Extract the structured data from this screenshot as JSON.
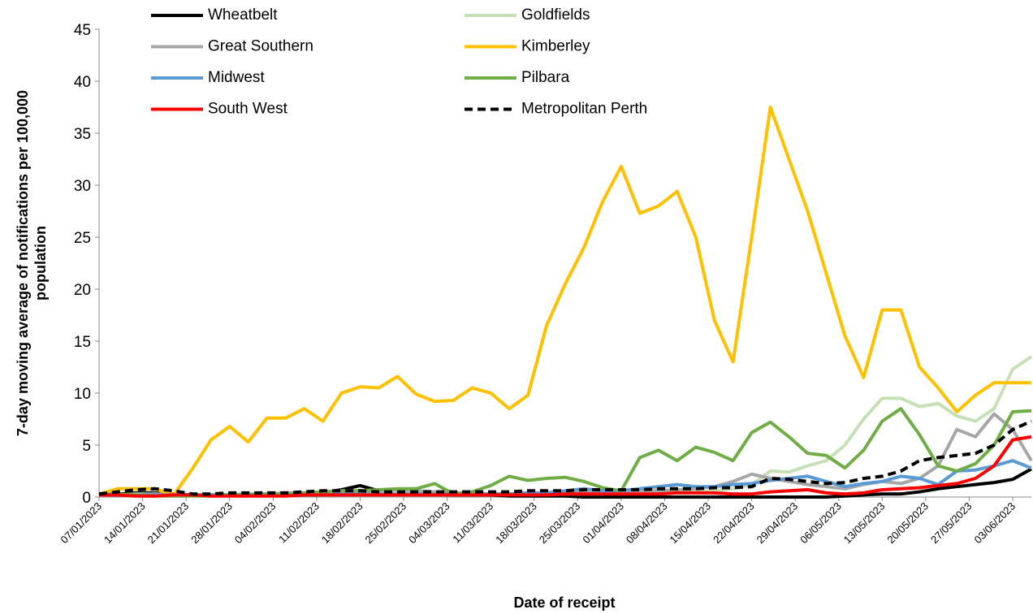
{
  "chart_data": {
    "type": "line",
    "xlabel": "Date of receipt",
    "ylabel": [
      "7-day moving average of notifications per 100,000",
      "population"
    ],
    "x": [
      "07/01/2023",
      "10/01/2023",
      "13/01/2023",
      "16/01/2023",
      "19/01/2023",
      "22/01/2023",
      "25/01/2023",
      "28/01/2023",
      "31/01/2023",
      "03/02/2023",
      "06/02/2023",
      "09/02/2023",
      "12/02/2023",
      "15/02/2023",
      "18/02/2023",
      "21/02/2023",
      "24/02/2023",
      "27/02/2023",
      "02/03/2023",
      "05/03/2023",
      "08/03/2023",
      "11/03/2023",
      "14/03/2023",
      "17/03/2023",
      "20/03/2023",
      "23/03/2023",
      "26/03/2023",
      "29/03/2023",
      "01/04/2023",
      "04/04/2023",
      "07/04/2023",
      "10/04/2023",
      "13/04/2023",
      "16/04/2023",
      "19/04/2023",
      "22/04/2023",
      "25/04/2023",
      "28/04/2023",
      "01/05/2023",
      "04/05/2023",
      "07/05/2023",
      "10/05/2023",
      "13/05/2023",
      "16/05/2023",
      "19/05/2023",
      "22/05/2023",
      "25/05/2023",
      "28/05/2023",
      "31/05/2023",
      "03/06/2023",
      "06/06/2023"
    ],
    "xlim": [
      "07/01/2023",
      "06/06/2023"
    ],
    "xticks": [
      "07/01/2023",
      "14/01/2023",
      "21/01/2023",
      "28/01/2023",
      "04/02/2023",
      "11/02/2023",
      "18/02/2023",
      "25/02/2023",
      "04/03/2023",
      "11/03/2023",
      "18/03/2023",
      "25/03/2023",
      "01/04/2023",
      "08/04/2023",
      "15/04/2023",
      "22/04/2023",
      "29/04/2023",
      "06/05/2023",
      "13/05/2023",
      "20/05/2023",
      "27/05/2023",
      "03/06/2023"
    ],
    "ylim": [
      0,
      45
    ],
    "yticks": [
      0,
      5,
      10,
      15,
      20,
      25,
      30,
      35,
      40,
      45
    ],
    "series": [
      {
        "name": "Wheatbelt",
        "color": "#000000",
        "values": [
          0.3,
          0.3,
          0.4,
          0.4,
          0.3,
          0.2,
          0.2,
          0.2,
          0.2,
          0.3,
          0.3,
          0.3,
          0.4,
          0.7,
          1.1,
          0.6,
          0.4,
          0.3,
          0.3,
          0.2,
          0.2,
          0.2,
          0.1,
          0.1,
          0.1,
          0.1,
          0,
          0,
          0,
          0,
          0,
          0,
          0,
          0,
          0,
          0,
          0,
          0,
          0,
          0,
          0.1,
          0.2,
          0.3,
          0.3,
          0.5,
          0.8,
          1,
          1.2,
          1.4,
          1.7,
          2.7
        ]
      },
      {
        "name": "Goldfields",
        "color": "#c5e0b4",
        "values": [
          0.2,
          0.2,
          0.3,
          0.3,
          0.2,
          0.2,
          0.2,
          0.3,
          0.3,
          0.3,
          0.3,
          0.3,
          0.4,
          0.4,
          0.4,
          0.5,
          0.5,
          0.5,
          0.4,
          0.4,
          0.4,
          0.3,
          0.3,
          0.3,
          0.3,
          0.3,
          0.3,
          0.3,
          0.4,
          0.4,
          0.4,
          0.5,
          0.5,
          0.6,
          0.8,
          1.2,
          2.5,
          2.4,
          3,
          3.5,
          5,
          7.5,
          9.5,
          9.5,
          8.7,
          9,
          7.8,
          7.3,
          8.5,
          12.3,
          13.5
        ]
      },
      {
        "name": "Great Southern",
        "color": "#a6a6a6",
        "values": [
          0.2,
          0.2,
          0.2,
          0.3,
          0.3,
          0.2,
          0.2,
          0.2,
          0.3,
          0.3,
          0.4,
          0.4,
          0.5,
          0.5,
          0.6,
          0.6,
          0.7,
          0.6,
          0.5,
          0.4,
          0.4,
          0.3,
          0.3,
          0.4,
          0.4,
          0.5,
          0.5,
          0.5,
          0.6,
          0.6,
          0.6,
          0.7,
          0.8,
          1,
          1.5,
          2.2,
          1.8,
          1.5,
          1.2,
          1,
          0.8,
          1.2,
          1.5,
          1.3,
          1.8,
          3,
          6.5,
          5.8,
          8,
          6.5,
          3.5
        ]
      },
      {
        "name": "Kimberley",
        "color": "#ffc000",
        "values": [
          0.3,
          0.8,
          0.8,
          0.8,
          0.2,
          2.7,
          5.5,
          6.8,
          5.3,
          7.6,
          7.6,
          8.5,
          7.3,
          10,
          10.6,
          10.5,
          11.6,
          9.9,
          9.2,
          9.3,
          10.5,
          10,
          8.5,
          9.8,
          16.5,
          20.5,
          24,
          28.4,
          31.8,
          27.3,
          28,
          29.4,
          25,
          17,
          13,
          25,
          37.5,
          32.5,
          27.5,
          21.5,
          15.5,
          11.5,
          18,
          18,
          12.5,
          10.5,
          8.2,
          9.8,
          11,
          11,
          11
        ]
      },
      {
        "name": "Midwest",
        "color": "#5b9bd5",
        "values": [
          0.2,
          0.2,
          0.2,
          0.2,
          0.2,
          0.2,
          0.2,
          0.2,
          0.2,
          0.2,
          0.2,
          0.2,
          0.2,
          0.3,
          0.3,
          0.3,
          0.3,
          0.3,
          0.3,
          0.3,
          0.3,
          0.3,
          0.3,
          0.4,
          0.4,
          0.6,
          0.8,
          0.6,
          0.6,
          0.8,
          1,
          1.2,
          1,
          1,
          1.2,
          1.3,
          1.6,
          1.8,
          2,
          1.5,
          1,
          1.3,
          1.5,
          2,
          1.8,
          1.2,
          2.5,
          2.6,
          3,
          3.5,
          2.8
        ]
      },
      {
        "name": "Pilbara",
        "color": "#70ad47",
        "values": [
          0.3,
          0.3,
          0.2,
          0.1,
          0.1,
          0.1,
          0.1,
          0.2,
          0.2,
          0.3,
          0.3,
          0.4,
          0.5,
          0.6,
          0.6,
          0.7,
          0.8,
          0.8,
          1.3,
          0.3,
          0.5,
          1.1,
          2,
          1.6,
          1.8,
          1.9,
          1.5,
          0.9,
          0.6,
          3.8,
          4.5,
          3.5,
          4.8,
          4.3,
          3.5,
          6.2,
          7.2,
          5.8,
          4.2,
          4,
          2.8,
          4.5,
          7.3,
          8.5,
          6,
          3,
          2.5,
          3.2,
          5,
          8.2,
          8.3
        ]
      },
      {
        "name": "South West",
        "color": "#ff0000",
        "values": [
          0.2,
          0.2,
          0.1,
          0.1,
          0.2,
          0.2,
          0.1,
          0.1,
          0.1,
          0.1,
          0.1,
          0.2,
          0.2,
          0.2,
          0.2,
          0.2,
          0.2,
          0.2,
          0.2,
          0.2,
          0.2,
          0.2,
          0.2,
          0.2,
          0.2,
          0.3,
          0.3,
          0.3,
          0.3,
          0.3,
          0.3,
          0.4,
          0.4,
          0.4,
          0.3,
          0.3,
          0.5,
          0.6,
          0.7,
          0.4,
          0.3,
          0.4,
          0.7,
          0.8,
          0.9,
          1.1,
          1.3,
          1.8,
          3,
          5.5,
          5.8
        ]
      },
      {
        "name": "Metropolitan Perth",
        "color": "#000000",
        "dashed": true,
        "values": [
          0.3,
          0.5,
          0.7,
          0.8,
          0.6,
          0.3,
          0.3,
          0.4,
          0.4,
          0.4,
          0.4,
          0.5,
          0.6,
          0.6,
          0.6,
          0.5,
          0.5,
          0.5,
          0.5,
          0.5,
          0.5,
          0.5,
          0.5,
          0.6,
          0.6,
          0.6,
          0.7,
          0.7,
          0.7,
          0.7,
          0.8,
          0.8,
          0.8,
          0.9,
          0.9,
          1,
          1.8,
          1.7,
          1.5,
          1.3,
          1.4,
          1.8,
          2,
          2.5,
          3.5,
          3.8,
          4,
          4.2,
          5,
          6.5,
          7.3
        ]
      }
    ]
  }
}
